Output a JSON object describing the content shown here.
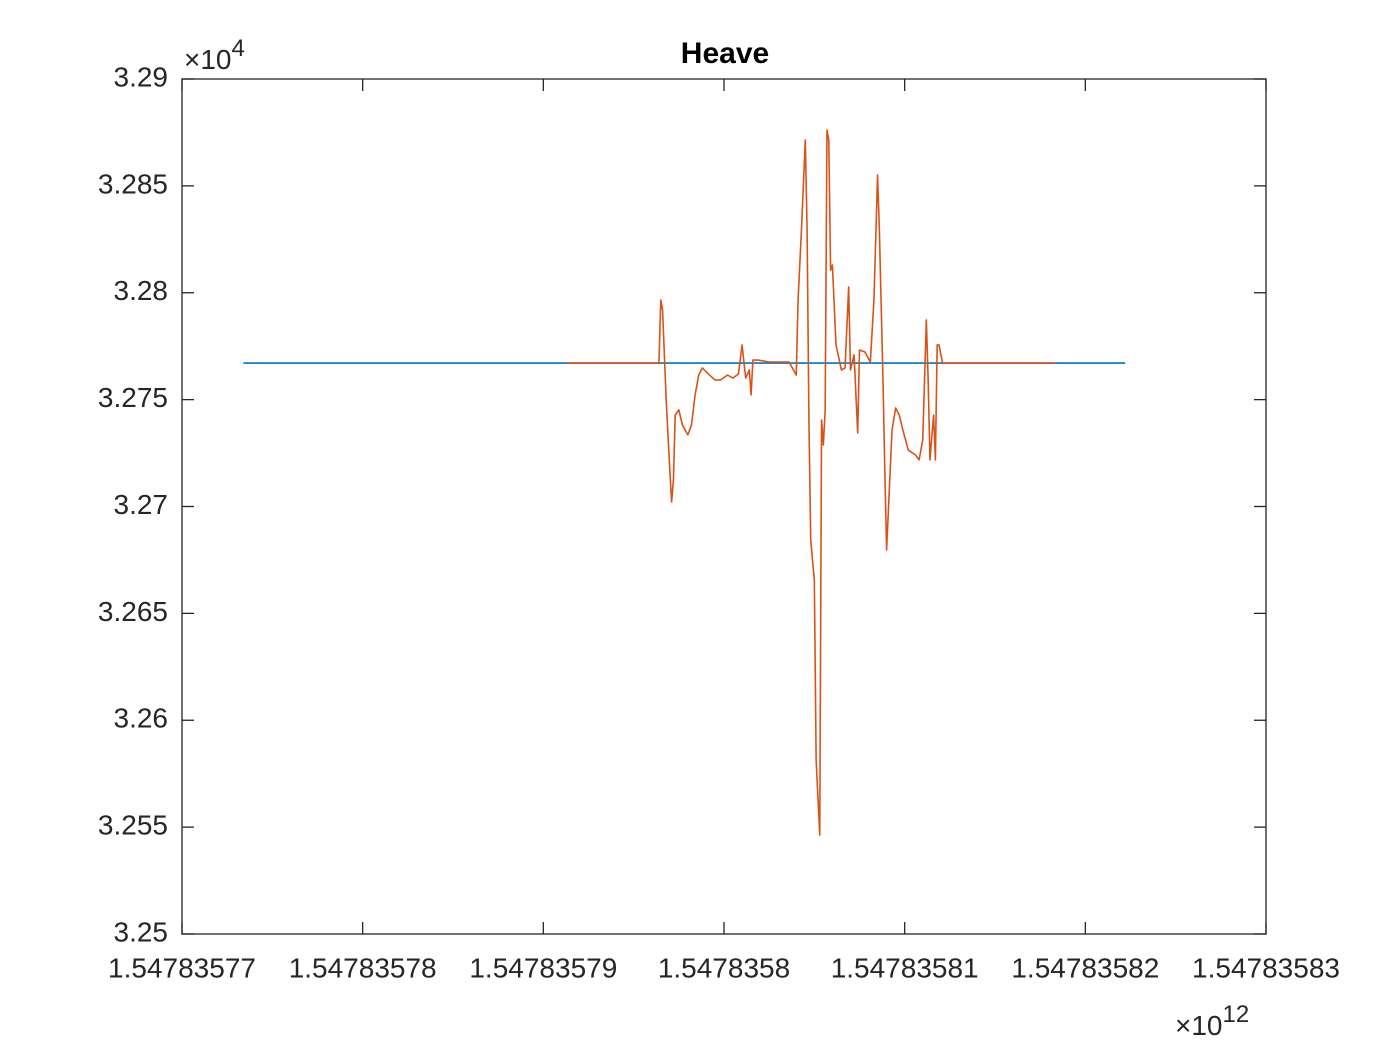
{
  "chart_data": {
    "type": "line",
    "title": "Heave",
    "xlim": [
      1.54783577,
      1.54783583
    ],
    "xticks": [
      1.54783577,
      1.54783578,
      1.54783579,
      1.5478358,
      1.54783581,
      1.54783582,
      1.54783583
    ],
    "ylim": [
      3.25,
      3.29
    ],
    "yticks": [
      3.25,
      3.255,
      3.26,
      3.265,
      3.27,
      3.275,
      3.28,
      3.285,
      3.29
    ],
    "x_exponent": {
      "base": "×10",
      "power": "12"
    },
    "y_exponent": {
      "base": "×10",
      "power": "4"
    },
    "grid": false,
    "series": [
      {
        "color": "#0072bd",
        "x": [
          1.5478357734,
          1.5478358222
        ],
        "values": [
          3.27671,
          3.27671
        ]
      },
      {
        "color": "#d95319",
        "x": [
          1.5478357913,
          1.5478357964,
          1.5478357965,
          1.5478357966,
          1.5478357968,
          1.547835797,
          1.5478357971,
          1.5478357972,
          1.5478357973,
          1.5478357975,
          1.5478357977,
          1.547835798,
          1.5478357982,
          1.5478357984,
          1.5478357986,
          1.5478357988,
          1.5478357992,
          1.5478357995,
          1.5478357998,
          1.5478358002,
          1.5478358005,
          1.5478358008,
          1.547835801,
          1.5478358012,
          1.5478358014,
          1.5478358015,
          1.5478358016,
          1.5478358019,
          1.5478358025,
          1.547835803,
          1.5478358036,
          1.547835804,
          1.5478358041,
          1.5478358043,
          1.5478358045,
          1.5478358046,
          1.5478358047,
          1.5478358048,
          1.547835805,
          1.5478358051,
          1.5478358053,
          1.5478358054,
          1.5478358055,
          1.5478358056,
          1.5478358057,
          1.5478358058,
          1.5478358059,
          1.547835806,
          1.5478358062,
          1.5478358065,
          1.5478358067,
          1.5478358069,
          1.547835807,
          1.5478358072,
          1.5478358074,
          1.5478358075,
          1.5478358078,
          1.5478358081,
          1.5478358083,
          1.5478358085,
          1.5478358086,
          1.5478358088,
          1.5478358089,
          1.547835809,
          1.5478358091,
          1.5478358093,
          1.5478358095,
          1.5478358097,
          1.5478358099,
          1.5478358102,
          1.5478358106,
          1.5478358108,
          1.547835811,
          1.5478358111,
          1.5478358112,
          1.5478358113,
          1.5478358114,
          1.5478358116,
          1.5478358117,
          1.5478358118,
          1.5478358119,
          1.5478358121,
          1.5478358183
        ],
        "values": [
          3.27671,
          3.27671,
          3.27966,
          3.27919,
          3.27498,
          3.27171,
          3.27021,
          3.27124,
          3.27428,
          3.27452,
          3.27381,
          3.27335,
          3.27381,
          3.27522,
          3.27615,
          3.27648,
          3.27615,
          3.27592,
          3.27592,
          3.27615,
          3.27601,
          3.2762,
          3.27756,
          3.27601,
          3.27639,
          3.27522,
          3.27685,
          3.27685,
          3.27676,
          3.27676,
          3.27676,
          3.27615,
          3.27966,
          3.28317,
          3.28715,
          3.28294,
          3.27405,
          3.26843,
          3.26656,
          3.25814,
          3.25463,
          3.27405,
          3.27288,
          3.27452,
          3.28761,
          3.28715,
          3.28106,
          3.2813,
          3.27756,
          3.27639,
          3.27648,
          3.28027,
          3.27639,
          3.27709,
          3.27344,
          3.27732,
          3.27723,
          3.27676,
          3.27966,
          3.28551,
          3.28294,
          3.27592,
          3.27171,
          3.26797,
          3.26984,
          3.27358,
          3.27461,
          3.27428,
          3.27358,
          3.27264,
          3.27241,
          3.27218,
          3.27311,
          3.27592,
          3.27873,
          3.27592,
          3.27218,
          3.27428,
          3.27218,
          3.27756,
          3.27756,
          3.27671,
          3.27671
        ]
      }
    ]
  }
}
